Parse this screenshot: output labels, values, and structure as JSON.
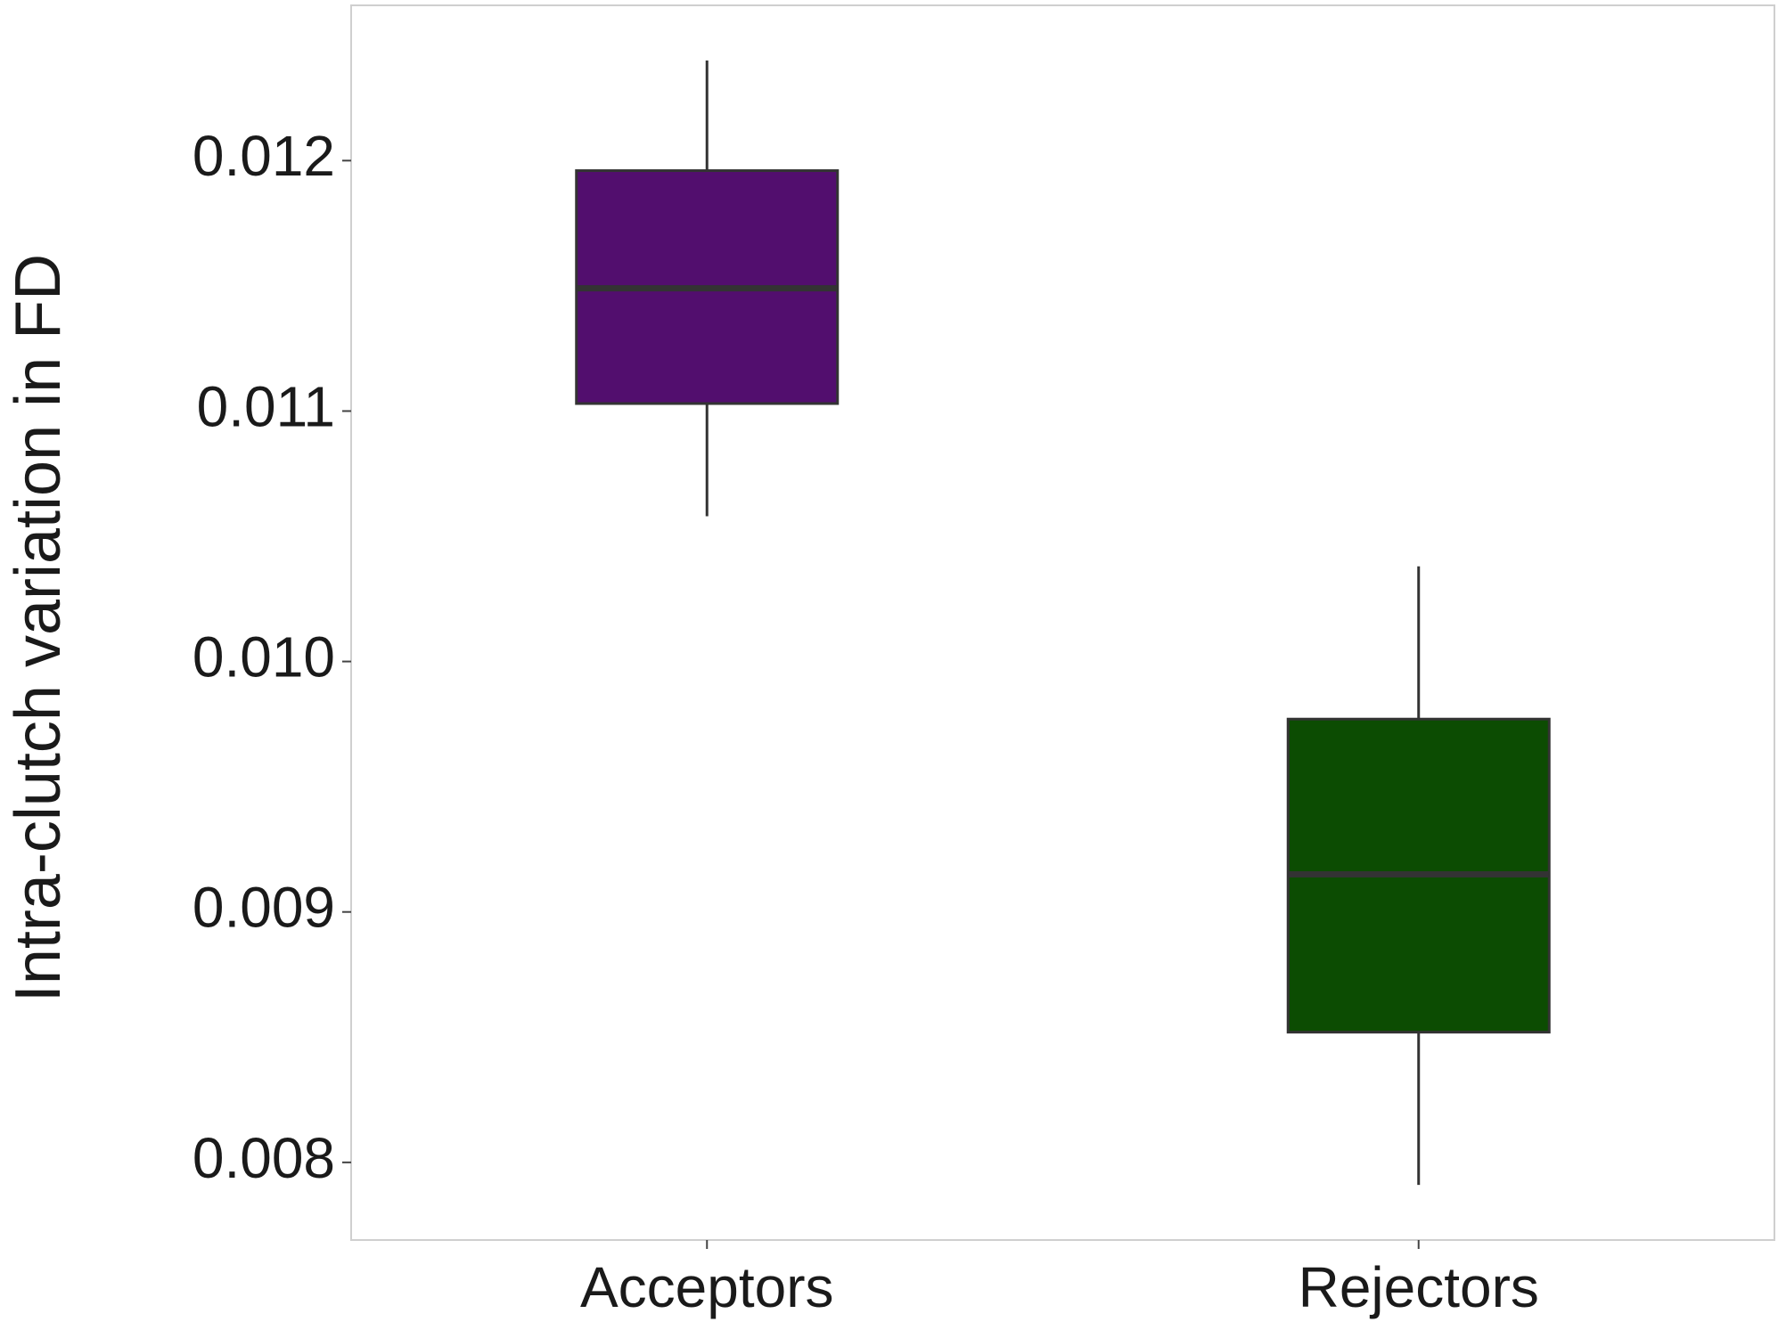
{
  "chart_data": {
    "type": "box",
    "y_label": "Intra-clutch variation in FD",
    "categories": [
      "Acceptors",
      "Rejectors"
    ],
    "colors": [
      "#520e6e",
      "#0c4c02"
    ],
    "whisker_high": [
      0.0124,
      0.01038
    ],
    "q3": [
      0.01196,
      0.00977
    ],
    "median": [
      0.01149,
      0.00915
    ],
    "q1": [
      0.01103,
      0.00852
    ],
    "whisker_low": [
      0.01058,
      0.00791
    ],
    "ylim": [
      0.00769,
      0.01262
    ],
    "yticks": [
      0.008,
      0.009,
      {
        "value": 0.01,
        "label": "0.010"
      },
      0.011,
      0.012
    ],
    "grid": false
  }
}
